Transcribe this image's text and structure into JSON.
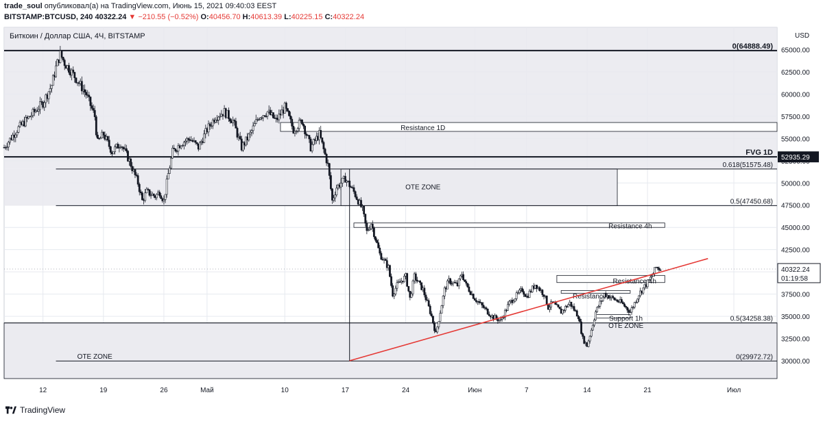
{
  "header": {
    "author": "trade_soul",
    "published_text": "опубликовал(а) на TradingView.com, Июнь 15, 2021 09:40:03 EEST",
    "symbol": "BITSTAMP:BTCUSD, 240",
    "last": "40322.24",
    "change": "−210.55 (−0.52%)",
    "open_label": "O:",
    "open": "40456.70",
    "high_label": "H:",
    "high": "40613.39",
    "low_label": "L:",
    "low": "40225.15",
    "close_label": "C:",
    "close": "40322.24"
  },
  "footer": {
    "brand": "TradingView"
  },
  "colors": {
    "up": "#131722",
    "down": "#131722",
    "trend": "#e53935",
    "price_tag": "#131722"
  },
  "chart_data": {
    "type": "candlestick",
    "title": "Биткоин / Доллар США, 4Ч, BITSTAMP",
    "currency": "USD",
    "ylim": [
      28000,
      67500
    ],
    "y_ticks": [
      30000,
      32500,
      35000,
      37500,
      40000,
      42500,
      45000,
      47500,
      50000,
      52500,
      55000,
      57500,
      60000,
      62500,
      65000
    ],
    "y_tick_labels": [
      "30000.00",
      "32500.00",
      "35000.00",
      "37500.00",
      "40000.00",
      "42500.00",
      "45000.00",
      "47500.00",
      "50000.00",
      "52500.00",
      "55000.00",
      "57500.00",
      "60000.00",
      "62500.00",
      "65000.00"
    ],
    "x_ticks": [
      {
        "label": "12",
        "day": 0
      },
      {
        "label": "19",
        "day": 7
      },
      {
        "label": "26",
        "day": 14
      },
      {
        "label": "Май",
        "day": 19
      },
      {
        "label": "10",
        "day": 28
      },
      {
        "label": "17",
        "day": 35
      },
      {
        "label": "24",
        "day": 42
      },
      {
        "label": "Июн",
        "day": 50
      },
      {
        "label": "7",
        "day": 56
      },
      {
        "label": "14",
        "day": 63
      },
      {
        "label": "21",
        "day": 70
      },
      {
        "label": "Июл",
        "day": 80
      }
    ],
    "xlim_days": [
      -4.5,
      85
    ],
    "price_path": [
      [
        -4.5,
        54000
      ],
      [
        -3,
        56000
      ],
      [
        -1.5,
        57500
      ],
      [
        0,
        59000
      ],
      [
        1,
        61000
      ],
      [
        1.5,
        63000
      ],
      [
        2,
        64500
      ],
      [
        2.5,
        63500
      ],
      [
        3.3,
        62500
      ],
      [
        4,
        61500
      ],
      [
        5,
        60000
      ],
      [
        6,
        57500
      ],
      [
        6.3,
        54500
      ],
      [
        7,
        55500
      ],
      [
        8,
        53500
      ],
      [
        9,
        54500
      ],
      [
        10,
        52500
      ],
      [
        11,
        50000
      ],
      [
        11.5,
        48000
      ],
      [
        12,
        49000
      ],
      [
        13,
        48500
      ],
      [
        13.5,
        49000
      ],
      [
        14,
        48000
      ],
      [
        14.5,
        51000
      ],
      [
        15,
        53500
      ],
      [
        16,
        54500
      ],
      [
        17,
        55000
      ],
      [
        18,
        54000
      ],
      [
        19,
        56000
      ],
      [
        20,
        57500
      ],
      [
        21,
        58000
      ],
      [
        22,
        57000
      ],
      [
        23,
        54000
      ],
      [
        24,
        55500
      ],
      [
        25,
        57500
      ],
      [
        26,
        58000
      ],
      [
        27,
        57000
      ],
      [
        28,
        58500
      ],
      [
        29,
        56000
      ],
      [
        30,
        57000
      ],
      [
        31,
        54000
      ],
      [
        32,
        55500
      ],
      [
        33,
        52000
      ],
      [
        33.5,
        48000
      ],
      [
        34,
        49500
      ],
      [
        35,
        50500
      ],
      [
        36,
        49000
      ],
      [
        37,
        47000
      ],
      [
        37.5,
        44500
      ],
      [
        38,
        45500
      ],
      [
        39,
        42000
      ],
      [
        40,
        40500
      ],
      [
        40.5,
        37500
      ],
      [
        41,
        38500
      ],
      [
        42,
        39500
      ],
      [
        42.5,
        37000
      ],
      [
        43,
        39500
      ],
      [
        44,
        38000
      ],
      [
        44.5,
        36500
      ],
      [
        45,
        35000
      ],
      [
        45.5,
        33000
      ],
      [
        46,
        35500
      ],
      [
        46.5,
        38000
      ],
      [
        47,
        39000
      ],
      [
        48,
        38500
      ],
      [
        48.5,
        39800
      ],
      [
        49,
        38500
      ],
      [
        50,
        37000
      ],
      [
        51,
        36000
      ],
      [
        52,
        35000
      ],
      [
        53,
        34500
      ],
      [
        54,
        36500
      ],
      [
        55,
        37500
      ],
      [
        55.5,
        38000
      ],
      [
        56,
        37200
      ],
      [
        57,
        38600
      ],
      [
        58,
        37500
      ],
      [
        58.5,
        36000
      ],
      [
        59,
        36500
      ],
      [
        60,
        35500
      ],
      [
        61,
        36500
      ],
      [
        62,
        35000
      ],
      [
        62.5,
        32500
      ],
      [
        63,
        31700
      ],
      [
        63.5,
        33500
      ],
      [
        64,
        35500
      ],
      [
        65,
        37500
      ],
      [
        66,
        37000
      ],
      [
        67,
        36500
      ],
      [
        68,
        35500
      ],
      [
        69,
        37500
      ],
      [
        70,
        38800
      ],
      [
        70.5,
        39500
      ],
      [
        71,
        40500
      ],
      [
        71.5,
        40322
      ]
    ],
    "horizontal_levels": [
      {
        "label": "0(64888.49)",
        "price": 64888,
        "x_from": -4.5,
        "bold": true
      },
      {
        "label": "FVG 1D",
        "value_label": "52935.29",
        "price": 52935,
        "x_from": -4.5,
        "bold": true
      },
      {
        "label": "0.618(51575.48)",
        "price": 51575,
        "x_from": 1.5
      },
      {
        "label": "0.5(47450.68)",
        "price": 47450,
        "x_from": 1.5
      },
      {
        "label": "0.5(34258.38)",
        "price": 34258,
        "x_from": -4.5
      },
      {
        "label": "0(29972.72)",
        "price": 29972,
        "x_from": 1.5
      }
    ],
    "zones": [
      {
        "label": "Resistance 1D",
        "x0": 27.5,
        "x1": 85,
        "p0": 55800,
        "p1": 56800,
        "fill": "#ffffff"
      },
      {
        "label": "OTE ZONE",
        "x0": 34.5,
        "x1": 66.5,
        "p0": 47450,
        "p1": 51575,
        "fill": "#ebebf0"
      },
      {
        "label": "Resistance 4h",
        "x0": 36,
        "x1": 72,
        "p0": 45000,
        "p1": 45500,
        "fill": "#ffffff"
      },
      {
        "label": "Resistance 4h",
        "x0": 59.5,
        "x1": 72,
        "p0": 38800,
        "p1": 39600,
        "fill": "#ffffff"
      },
      {
        "label": "Resistance",
        "x0": 60,
        "x1": 68,
        "p0": 37600,
        "p1": 37900,
        "fill": "#ffffff"
      },
      {
        "label": "Support 1h",
        "x0": 64,
        "x1": 68,
        "p0": 34800,
        "p1": 35200,
        "fill": "#ffffff"
      },
      {
        "label": "OTE ZONE",
        "x0": -4.5,
        "x1": 85,
        "p0": 28000,
        "p1": 34258,
        "fill": "#ebebf0"
      }
    ],
    "zone_labels": [
      {
        "text": "Resistance 1D",
        "day": 44,
        "price": 56250
      },
      {
        "text": "OTE ZONE",
        "day": 44,
        "price": 49600
      },
      {
        "text": "Resistance 4h",
        "day": 68,
        "price": 45200
      },
      {
        "text": "Resistance 4h",
        "day": 68.5,
        "price": 39000
      },
      {
        "text": "Resistance",
        "day": 63.3,
        "price": 37300
      },
      {
        "text": "Support 1h",
        "day": 67.5,
        "price": 34800
      },
      {
        "text": "OTE ZONE",
        "day": 67.5,
        "price": 34000
      },
      {
        "text": "OTE ZONE",
        "day": 6,
        "price": 30550
      }
    ],
    "vertical_line": {
      "day": 35.5,
      "p0": 30000,
      "p1": 51575
    },
    "trend_line": {
      "d0": 35.5,
      "p0": 30000,
      "d1": 77,
      "p1": 41500
    },
    "last_price": {
      "value": "40322.24",
      "countdown": "01:19:58",
      "price": 40322
    }
  }
}
